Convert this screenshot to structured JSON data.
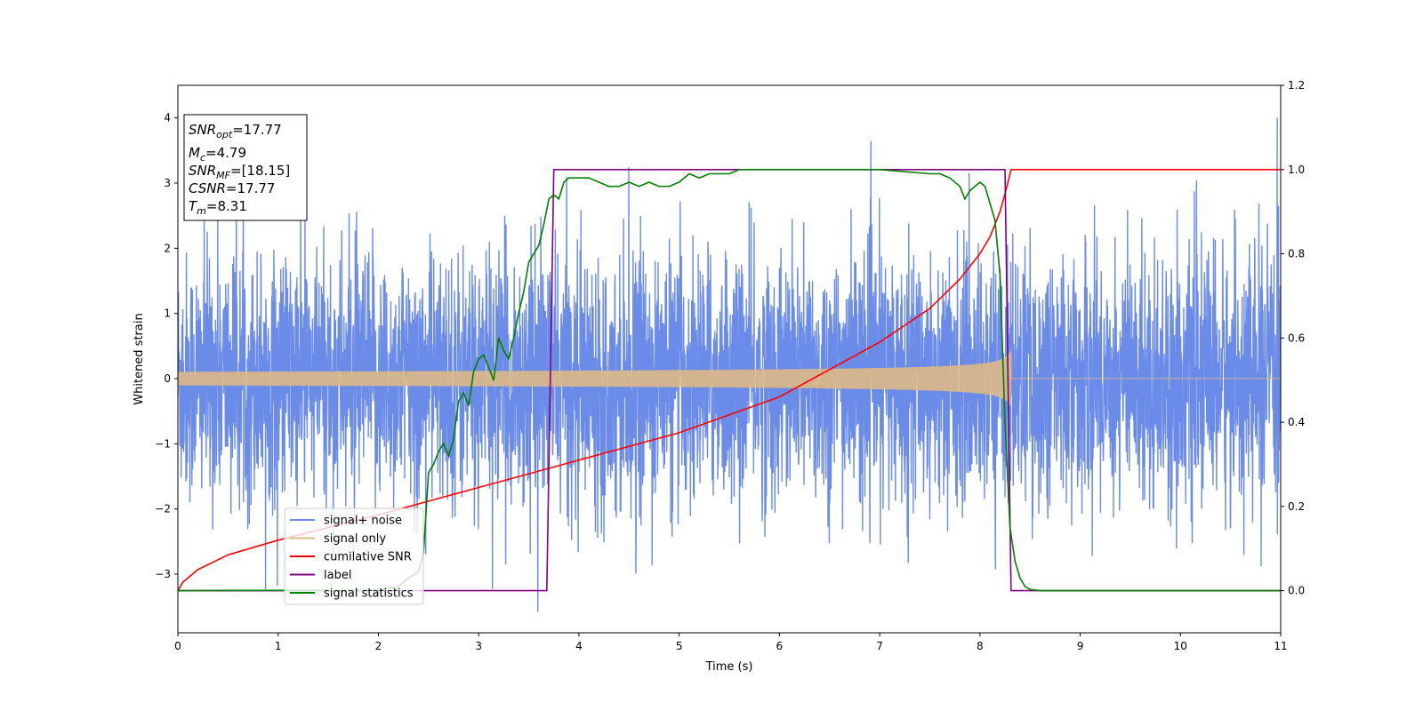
{
  "chart_data": {
    "type": "line",
    "xlabel": "Time (s)",
    "ylabel": "Whitened strain",
    "xlim": [
      0,
      11
    ],
    "ylim": [
      -3.9,
      4.5
    ],
    "y2lim": [
      -0.1,
      1.2
    ],
    "x_ticks": [
      "0",
      "1",
      "2",
      "3",
      "4",
      "5",
      "6",
      "7",
      "8",
      "9",
      "10",
      "11"
    ],
    "y_ticks": [
      "−3",
      "−2",
      "−1",
      "0",
      "1",
      "2",
      "3",
      "4"
    ],
    "y2_ticks": [
      "0.0",
      "0.2",
      "0.4",
      "0.6",
      "0.8",
      "1.0",
      "1.2"
    ],
    "grid": false,
    "legend_location": "lower left",
    "annotation": {
      "snr_opt": "=17.77",
      "mc": "=4.79",
      "snr_mf": "=[18.15]",
      "csnr": "=17.77",
      "tm": "=8.31"
    },
    "series": [
      {
        "name": "signal+ noise",
        "axis": "left",
        "kind": "noise",
        "color": "#6a8be8",
        "std": 0.95,
        "xmax": 11,
        "tm": 8.31
      },
      {
        "name": "signal only",
        "axis": "left",
        "kind": "chirp",
        "color": "#deb887",
        "tm": 8.31,
        "start_amp": 0.1,
        "peak_amp": 1.2
      },
      {
        "name": "cumilative SNR",
        "axis": "right",
        "kind": "line",
        "color": "#ff0000",
        "x": [
          0,
          0.05,
          0.2,
          0.5,
          1,
          2,
          3,
          4,
          5,
          6,
          7,
          7.5,
          7.8,
          8.0,
          8.1,
          8.2,
          8.27,
          8.31,
          11
        ],
        "y": [
          0.0,
          0.02,
          0.05,
          0.085,
          0.12,
          0.18,
          0.245,
          0.31,
          0.375,
          0.46,
          0.59,
          0.67,
          0.74,
          0.8,
          0.84,
          0.9,
          0.96,
          1.0,
          1.0
        ]
      },
      {
        "name": "label",
        "axis": "right",
        "kind": "line",
        "color": "#800080",
        "x": [
          0,
          3.68,
          3.75,
          8.25,
          8.31,
          11
        ],
        "y": [
          0,
          0,
          1,
          1,
          0,
          0
        ]
      },
      {
        "name": "signal statistics",
        "axis": "right",
        "kind": "line",
        "color": "#008000",
        "x": [
          0,
          2.0,
          2.2,
          2.3,
          2.4,
          2.45,
          2.5,
          2.55,
          2.6,
          2.65,
          2.7,
          2.75,
          2.8,
          2.85,
          2.9,
          2.95,
          3.0,
          3.05,
          3.1,
          3.15,
          3.2,
          3.25,
          3.3,
          3.35,
          3.4,
          3.45,
          3.5,
          3.55,
          3.6,
          3.65,
          3.7,
          3.75,
          3.8,
          3.85,
          3.9,
          4.0,
          4.1,
          4.2,
          4.3,
          4.4,
          4.5,
          4.6,
          4.7,
          4.8,
          4.9,
          5.0,
          5.1,
          5.2,
          5.3,
          5.4,
          5.5,
          5.6,
          5.7,
          5.8,
          6.0,
          6.5,
          7.0,
          7.5,
          7.6,
          7.7,
          7.8,
          7.85,
          7.9,
          7.95,
          8.0,
          8.05,
          8.1,
          8.15,
          8.2,
          8.25,
          8.3,
          8.35,
          8.4,
          8.45,
          8.5,
          8.6,
          9.0,
          11
        ],
        "y": [
          0,
          0.001,
          0.01,
          0.03,
          0.045,
          0.09,
          0.28,
          0.3,
          0.33,
          0.35,
          0.32,
          0.36,
          0.45,
          0.47,
          0.44,
          0.52,
          0.55,
          0.56,
          0.53,
          0.5,
          0.6,
          0.57,
          0.55,
          0.6,
          0.66,
          0.71,
          0.78,
          0.8,
          0.82,
          0.87,
          0.93,
          0.94,
          0.93,
          0.97,
          0.98,
          0.98,
          0.98,
          0.97,
          0.96,
          0.96,
          0.97,
          0.96,
          0.97,
          0.96,
          0.96,
          0.97,
          0.99,
          0.98,
          0.99,
          0.99,
          0.99,
          1.0,
          1.0,
          1.0,
          1.0,
          1.0,
          1.0,
          0.99,
          0.99,
          0.98,
          0.96,
          0.93,
          0.95,
          0.96,
          0.97,
          0.96,
          0.92,
          0.88,
          0.75,
          0.4,
          0.15,
          0.07,
          0.03,
          0.01,
          0.003,
          0.0,
          0.0,
          0.0
        ]
      }
    ]
  }
}
